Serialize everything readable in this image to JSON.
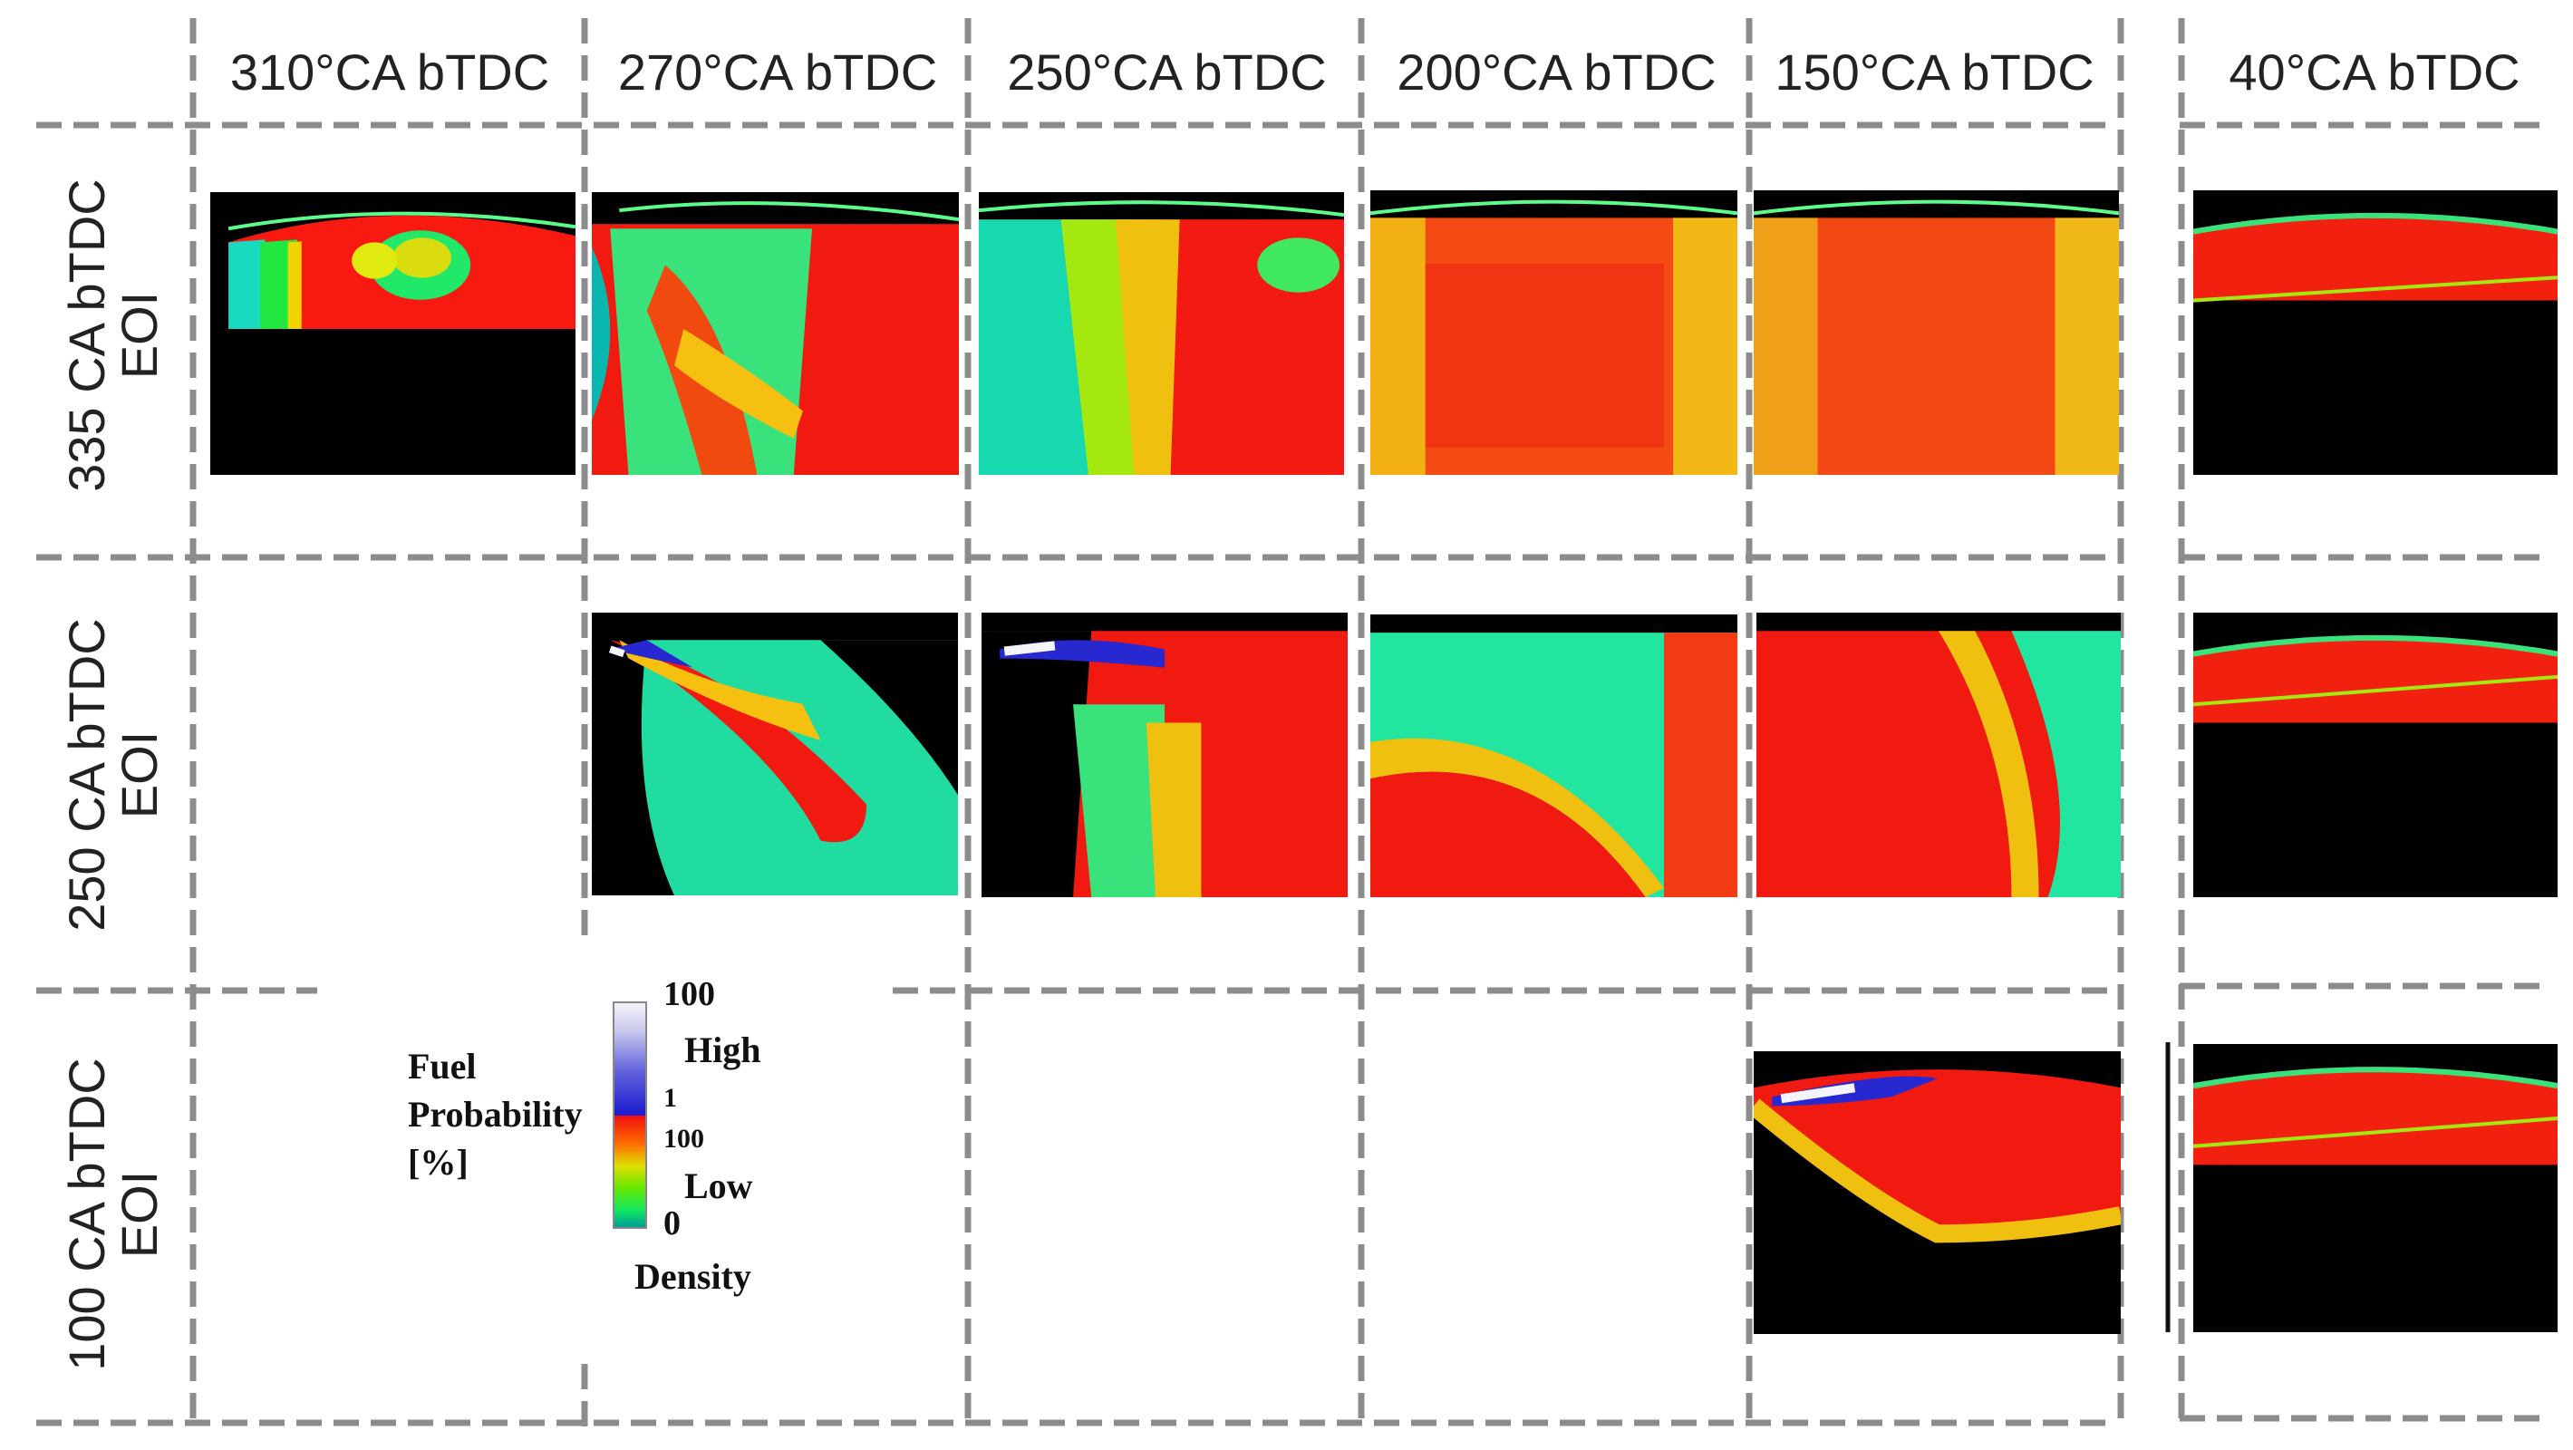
{
  "columns": [
    "310°CA bTDC",
    "270°CA bTDC",
    "250°CA bTDC",
    "200°CA bTDC",
    "150°CA bTDC",
    "40°CA bTDC"
  ],
  "rows": [
    {
      "line1": "EOI",
      "line2": "335 CA bTDC"
    },
    {
      "line1": "EOI",
      "line2": "250 CA bTDC"
    },
    {
      "line1": "EOI",
      "line2": "100 CA bTDC"
    }
  ],
  "legend": {
    "title_line1": "Fuel",
    "title_line2": "Probability",
    "title_line3": "[%]",
    "top_value": "100",
    "high_label": "High",
    "mid_value": "1",
    "mid_value2": "100",
    "low_label": "Low",
    "bottom_value": "0",
    "density_label": "Density"
  },
  "colors": {
    "grid_dash": "#8c8c8c",
    "background": "#000000",
    "scale": [
      "#f4f4fb",
      "#1a1ad0",
      "#f01010",
      "#ff6a00",
      "#e0e000",
      "#10e860",
      "#009a9a"
    ]
  }
}
